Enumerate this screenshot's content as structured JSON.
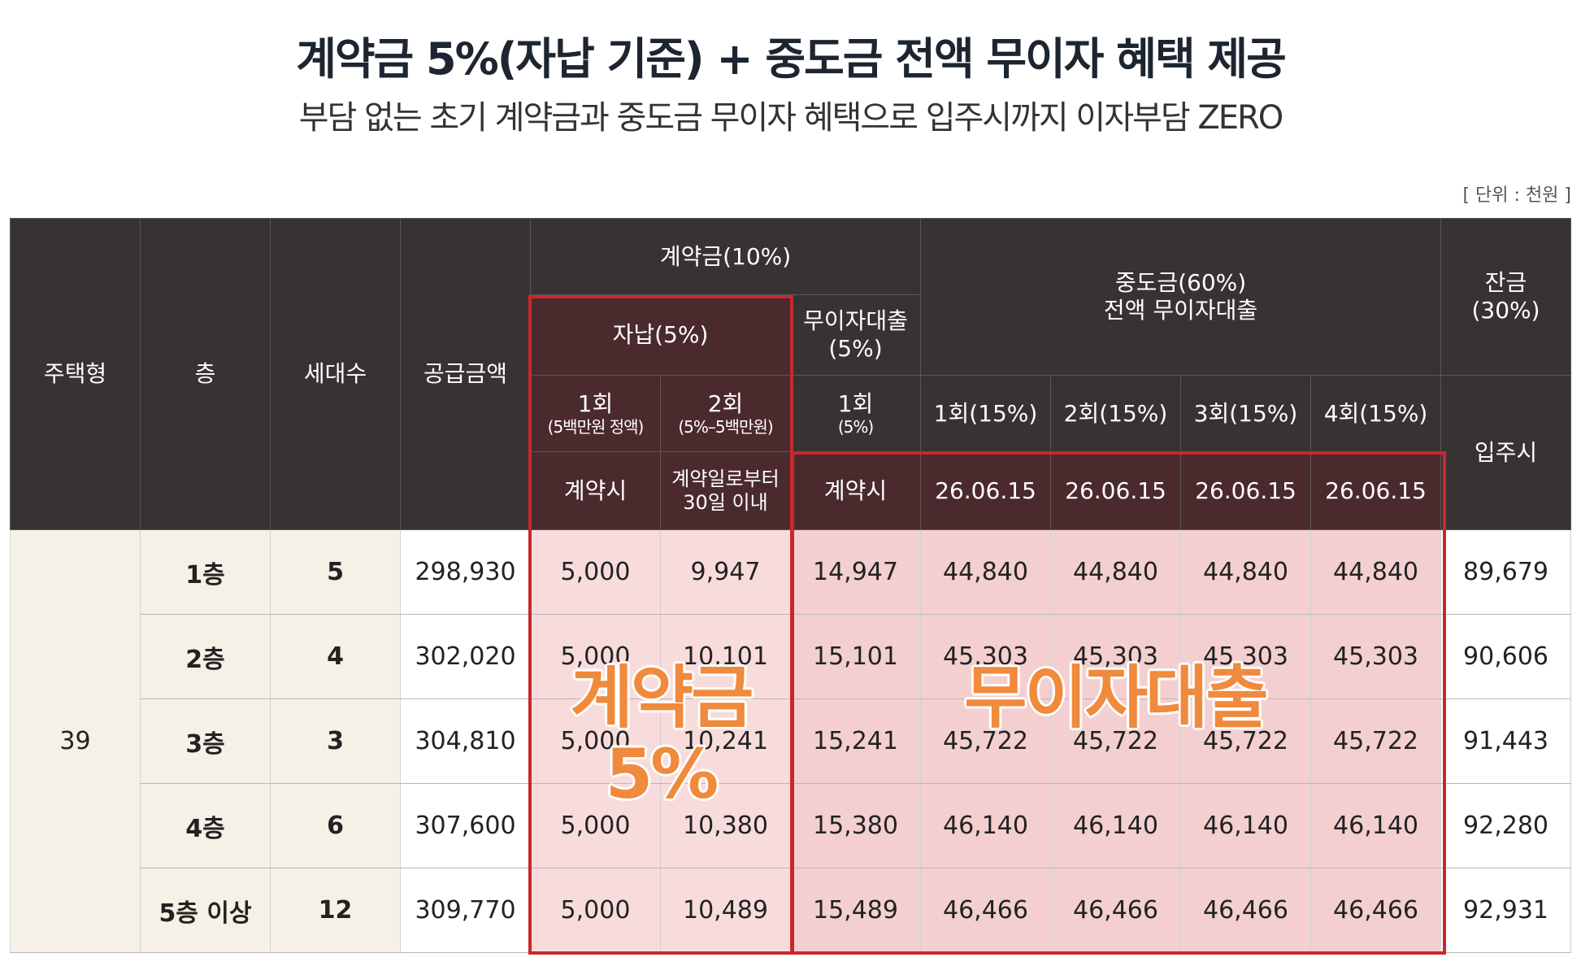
{
  "header": {
    "title": "계약금 5%(자납 기준) + 중도금 전액 무이자 혜택 제공",
    "subtitle": "부담 없는 초기 계약금과 중도금 무이자 혜택으로 입주시까지 이자부담 ZERO"
  },
  "unit": "[ 단위 : 천원 ]",
  "table": {
    "head": {
      "type": "주택형",
      "floor": "층",
      "households": "세대수",
      "supply": "공급금액",
      "deposit": "계약금(10%)",
      "middle": [
        "중도금(60%)",
        "전액 무이자대출"
      ],
      "balance": [
        "잔금",
        "(30%)"
      ],
      "self": "자납(5%)",
      "loan": [
        "무이자대출",
        "(5%)"
      ],
      "installments": [
        [
          "1회",
          "(5백만원 정액)"
        ],
        [
          "2회",
          "(5%–5백만원)"
        ],
        [
          "1회",
          "(5%)"
        ],
        [
          "1회(15%)"
        ],
        [
          "2회(15%)"
        ],
        [
          "3회(15%)"
        ],
        [
          "4회(15%)"
        ]
      ],
      "move_in": "입주시",
      "due": [
        [
          "계약시"
        ],
        [
          "계약일로부터",
          "30일 이내"
        ],
        [
          "계약시"
        ],
        [
          "26.06.15"
        ],
        [
          "26.06.15"
        ],
        [
          "26.06.15"
        ],
        [
          "26.06.15"
        ]
      ]
    },
    "type_value": "39",
    "rows": [
      [
        "1층",
        "5",
        "298,930",
        "5,000",
        "9,947",
        "14,947",
        "44,840",
        "44,840",
        "44,840",
        "44,840",
        "89,679"
      ],
      [
        "2층",
        "4",
        "302,020",
        "5,000",
        "10,101",
        "15,101",
        "45,303",
        "45,303",
        "45,303",
        "45,303",
        "90,606"
      ],
      [
        "3층",
        "3",
        "304,810",
        "5,000",
        "10,241",
        "15,241",
        "45,722",
        "45,722",
        "45,722",
        "45,722",
        "91,443"
      ],
      [
        "4층",
        "6",
        "307,600",
        "5,000",
        "10,380",
        "15,380",
        "46,140",
        "46,140",
        "46,140",
        "46,140",
        "92,280"
      ],
      [
        "5층 이상",
        "12",
        "309,770",
        "5,000",
        "10,489",
        "15,489",
        "46,466",
        "46,466",
        "46,466",
        "46,466",
        "92,931"
      ]
    ]
  },
  "overlays": {
    "deposit": [
      "계약금",
      "5%"
    ],
    "loan": "무이자대출"
  }
}
